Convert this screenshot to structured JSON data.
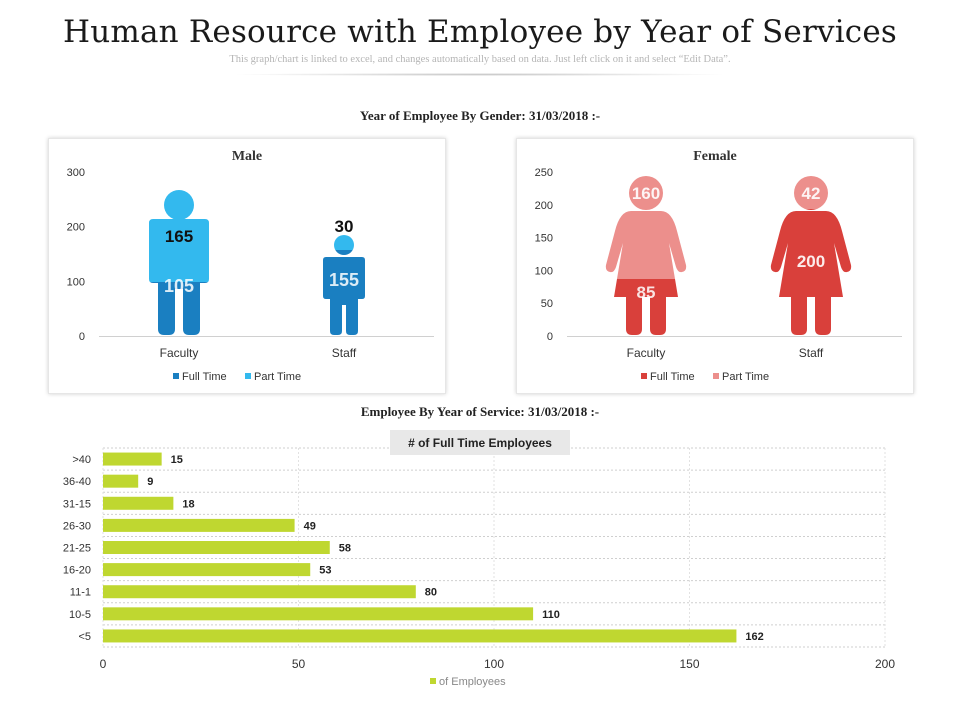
{
  "page": {
    "title": "Human Resource with Employee by Year of Services",
    "subtitle": "This graph/chart is linked to excel, and changes automatically based on data. Just left click on it and select “Edit Data”."
  },
  "sections": {
    "gender_label": "Year of Employee By Gender: 31/03/2018 :-",
    "service_label": "Employee By Year of Service: 31/03/2018 :-"
  },
  "chart_data": [
    {
      "type": "bar",
      "title": "Male",
      "categories": [
        "Faculty",
        "Staff"
      ],
      "series": [
        {
          "name": "Full Time",
          "values": [
            105,
            155
          ],
          "color": "#1a7fc1"
        },
        {
          "name": "Part Time",
          "values": [
            165,
            30
          ],
          "color": "#33b9ee"
        }
      ],
      "ylim": [
        0,
        300
      ],
      "yticks": [
        "0",
        "100",
        "200",
        "300"
      ],
      "legend": "bottom"
    },
    {
      "type": "bar",
      "title": "Female",
      "categories": [
        "Faculty",
        "Staff"
      ],
      "series": [
        {
          "name": "Full Time",
          "values": [
            85,
            200
          ],
          "color": "#d9403b"
        },
        {
          "name": "Part Time",
          "values": [
            160,
            42
          ],
          "color": "#ec8f8c"
        }
      ],
      "ylim": [
        0,
        250
      ],
      "yticks": [
        "0",
        "50",
        "100",
        "150",
        "200",
        "250"
      ],
      "legend": "bottom"
    },
    {
      "type": "bar",
      "orientation": "horizontal",
      "title": "# of Full Time Employees",
      "categories": [
        ">40",
        "36-40",
        "31-15",
        "26-30",
        "21-25",
        "16-20",
        "11-1",
        "10-5",
        "<5"
      ],
      "values": [
        15,
        9,
        18,
        49,
        58,
        53,
        80,
        110,
        162
      ],
      "xlim": [
        0,
        200
      ],
      "xticks": [
        "0",
        "50",
        "100",
        "150",
        "200"
      ],
      "legend_entry": "of Employees",
      "color": "#bfd730",
      "legend": "bottom"
    }
  ]
}
